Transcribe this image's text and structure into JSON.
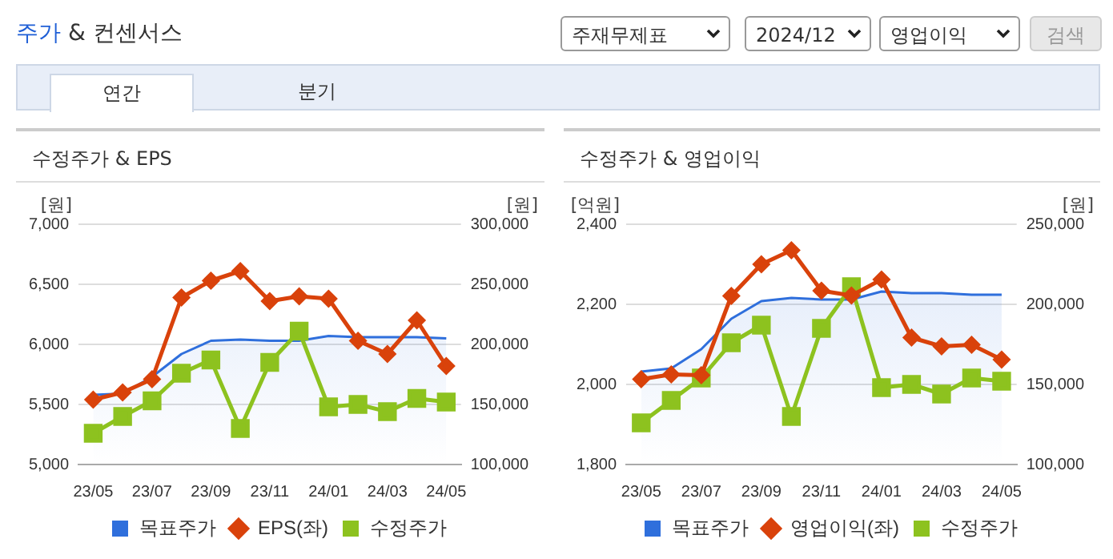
{
  "chart_data": [
    {
      "type": "other",
      "title": "주가 & 컨센서스",
      "annotations": [
        "주재무제표",
        "2024/12",
        "영업이익",
        "검색",
        "연간",
        "분기"
      ]
    },
    {
      "type": "line",
      "title": "수정주가 & EPS",
      "categories": [
        "23/05",
        null,
        "23/07",
        null,
        "23/09",
        null,
        "23/11",
        null,
        "24/01",
        null,
        "24/03",
        null,
        "24/05"
      ],
      "ylabel": "[원]",
      "y2label": "[원]",
      "ylim": [
        5000,
        7000
      ],
      "yticks": [
        {
          "value": 5000,
          "label": "5,000"
        },
        {
          "value": 5500,
          "label": "5,500"
        },
        {
          "value": 6000,
          "label": "6,000"
        },
        {
          "value": 6500,
          "label": "6,500"
        },
        {
          "value": 7000,
          "label": "7,000"
        }
      ],
      "y2lim": [
        100000,
        300000
      ],
      "y2ticks": [
        {
          "value": 100000,
          "label": "100,000"
        },
        {
          "value": 150000,
          "label": "150,000"
        },
        {
          "value": 200000,
          "label": "200,000"
        },
        {
          "value": 250000,
          "label": "250,000"
        },
        {
          "value": 300000,
          "label": "300,000"
        }
      ],
      "grid": "y",
      "legend": "bottom",
      "series": [
        {
          "name": "목표주가",
          "type": "area",
          "axis": "y2",
          "color": "#2f6fdc",
          "marker": "none",
          "values": [
            158000,
            159000,
            173000,
            192000,
            203000,
            204000,
            203000,
            203000,
            207000,
            206000,
            206000,
            206000,
            205000
          ]
        },
        {
          "name": "EPS(좌)",
          "type": "line",
          "axis": "y",
          "color": "#d9420b",
          "marker": "diamond",
          "values": [
            5540,
            5600,
            5710,
            6390,
            6530,
            6610,
            6360,
            6400,
            6380,
            6030,
            5920,
            6200,
            5820
          ]
        },
        {
          "name": "수정주가",
          "type": "line",
          "axis": "y2",
          "color": "#8dc21f",
          "marker": "square",
          "values": [
            126000,
            140000,
            153000,
            176000,
            187000,
            130000,
            185000,
            211000,
            148000,
            150000,
            144000,
            155000,
            152000
          ]
        }
      ]
    },
    {
      "type": "line",
      "title": "수정주가 & 영업이익",
      "categories": [
        "23/05",
        null,
        "23/07",
        null,
        "23/09",
        null,
        "23/11",
        null,
        "24/01",
        null,
        "24/03",
        null,
        "24/05"
      ],
      "ylabel": "[억원]",
      "y2label": "[원]",
      "ylim": [
        1800,
        2400
      ],
      "yticks": [
        {
          "value": 1800,
          "label": "1,800"
        },
        {
          "value": 2000,
          "label": "2,000"
        },
        {
          "value": 2200,
          "label": "2,200"
        },
        {
          "value": 2400,
          "label": "2,400"
        }
      ],
      "y2lim": [
        100000,
        250000
      ],
      "y2ticks": [
        {
          "value": 100000,
          "label": "100,000"
        },
        {
          "value": 150000,
          "label": "150,000"
        },
        {
          "value": 200000,
          "label": "200,000"
        },
        {
          "value": 250000,
          "label": "250,000"
        }
      ],
      "grid": "y",
      "legend": "bottom",
      "series": [
        {
          "name": "목표주가",
          "type": "area",
          "axis": "y2",
          "color": "#2f6fdc",
          "marker": "none",
          "values": [
            158000,
            160000,
            172000,
            191000,
            202000,
            204000,
            203000,
            203000,
            208000,
            207000,
            207000,
            206000,
            206000
          ]
        },
        {
          "name": "영업이익(좌)",
          "type": "line",
          "axis": "y",
          "color": "#d9420b",
          "marker": "diamond",
          "values": [
            2013,
            2025,
            2023,
            2221,
            2300,
            2335,
            2234,
            2222,
            2262,
            2117,
            2095,
            2099,
            2062
          ]
        },
        {
          "name": "수정주가",
          "type": "line",
          "axis": "y2",
          "color": "#8dc21f",
          "marker": "square",
          "values": [
            126000,
            140000,
            154000,
            176000,
            187000,
            130000,
            185000,
            211000,
            148000,
            150000,
            144000,
            154000,
            152000
          ]
        }
      ]
    }
  ]
}
